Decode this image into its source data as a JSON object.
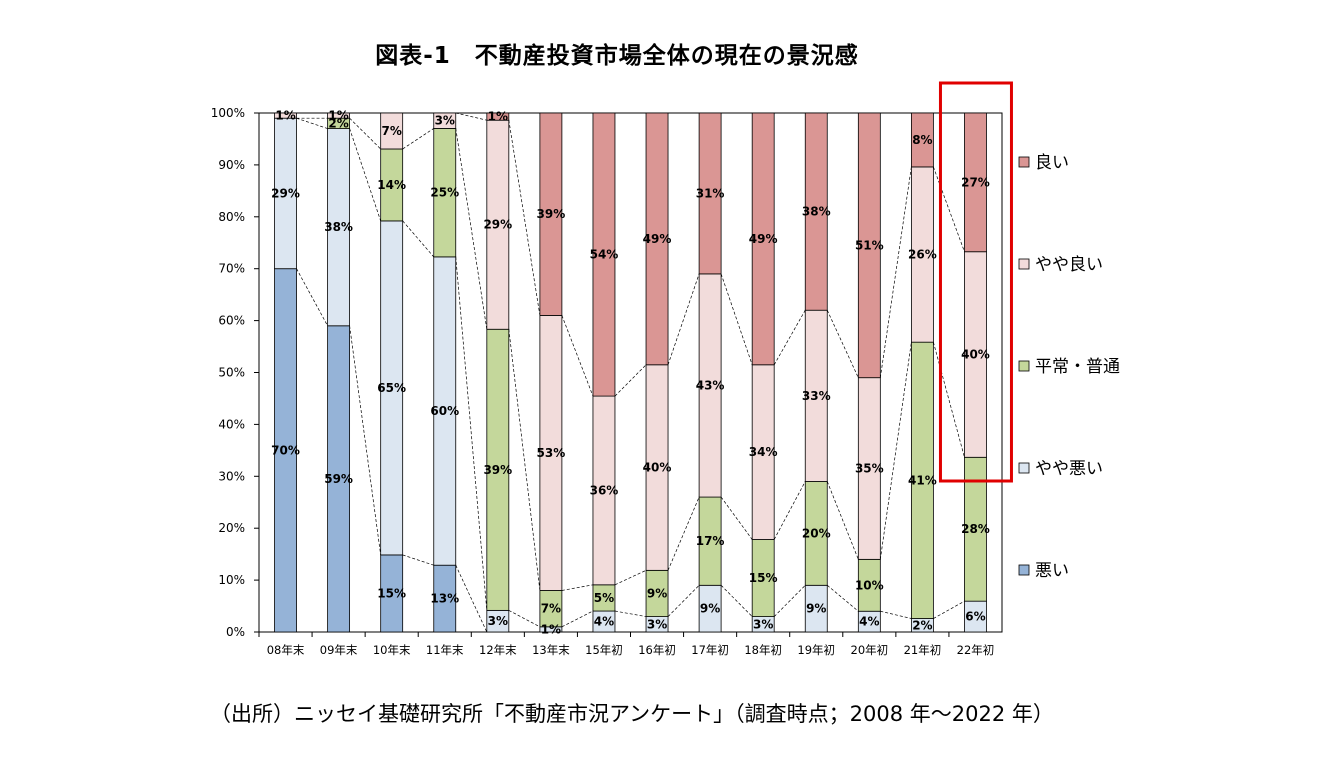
{
  "chart_data": {
    "type": "bar",
    "stacked": true,
    "title": "図表-1　不動産投資市場全体の現在の景況感",
    "source": "（出所）ニッセイ基礎研究所「不動産市況アンケート」（調査時点；2008 年～2022 年）",
    "categories": [
      "08年末",
      "09年末",
      "10年末",
      "11年末",
      "12年末",
      "13年末",
      "15年初",
      "16年初",
      "17年初",
      "18年初",
      "19年初",
      "20年初",
      "21年初",
      "22年初"
    ],
    "ylim": [
      0,
      100
    ],
    "yticks": [
      "0%",
      "10%",
      "20%",
      "30%",
      "40%",
      "50%",
      "60%",
      "70%",
      "80%",
      "90%",
      "100%"
    ],
    "grid": false,
    "legend_position": "right",
    "colors": {
      "bad": "#95b3d7",
      "slightly_bad": "#dce6f1",
      "normal": "#c4d79b",
      "slightly_good": "#f2dcdb",
      "good": "#da9694",
      "highlight": "#e00000"
    },
    "series": [
      {
        "key": "bad",
        "name": "悪い",
        "values": [
          70,
          59,
          15,
          13,
          0,
          0,
          0,
          0,
          0,
          0,
          0,
          0,
          0,
          0
        ],
        "labels": [
          "70%",
          "59%",
          "15%",
          "13%",
          "",
          "",
          "",
          "",
          "",
          "",
          "",
          "",
          "",
          ""
        ]
      },
      {
        "key": "slightly_bad",
        "name": "やや悪い",
        "values": [
          29,
          38,
          65,
          60,
          3,
          1,
          4,
          3,
          9,
          3,
          9,
          4,
          2,
          6
        ],
        "labels": [
          "29%",
          "38%",
          "65%",
          "60%",
          "3%",
          "1%",
          "4%",
          "3%",
          "9%",
          "3%",
          "9%",
          "4%",
          "2%",
          "6%"
        ]
      },
      {
        "key": "normal",
        "name": "平常・普通",
        "values": [
          0,
          2,
          14,
          25,
          39,
          7,
          5,
          9,
          17,
          15,
          20,
          10,
          41,
          28
        ],
        "labels": [
          "",
          "2%",
          "14%",
          "25%",
          "39%",
          "7%",
          "5%",
          "9%",
          "17%",
          "15%",
          "20%",
          "10%",
          "41%",
          "28%"
        ]
      },
      {
        "key": "slightly_good",
        "name": "やや良い",
        "values": [
          1,
          1,
          7,
          3,
          29,
          53,
          36,
          40,
          43,
          34,
          33,
          35,
          26,
          40
        ],
        "labels": [
          "1%",
          "1%",
          "7%",
          "3%",
          "29%",
          "53%",
          "36%",
          "40%",
          "43%",
          "34%",
          "33%",
          "35%",
          "26%",
          "40%"
        ]
      },
      {
        "key": "good",
        "name": "良い",
        "values": [
          0,
          0,
          0,
          0,
          1,
          39,
          54,
          49,
          31,
          49,
          38,
          51,
          8,
          27
        ],
        "labels": [
          "",
          "",
          "",
          "",
          "1%",
          "39%",
          "54%",
          "49%",
          "31%",
          "49%",
          "38%",
          "51%",
          "8%",
          "27%"
        ]
      }
    ],
    "legend_order": [
      "good",
      "slightly_good",
      "normal",
      "slightly_bad",
      "bad"
    ],
    "highlight_category": "22年初"
  }
}
